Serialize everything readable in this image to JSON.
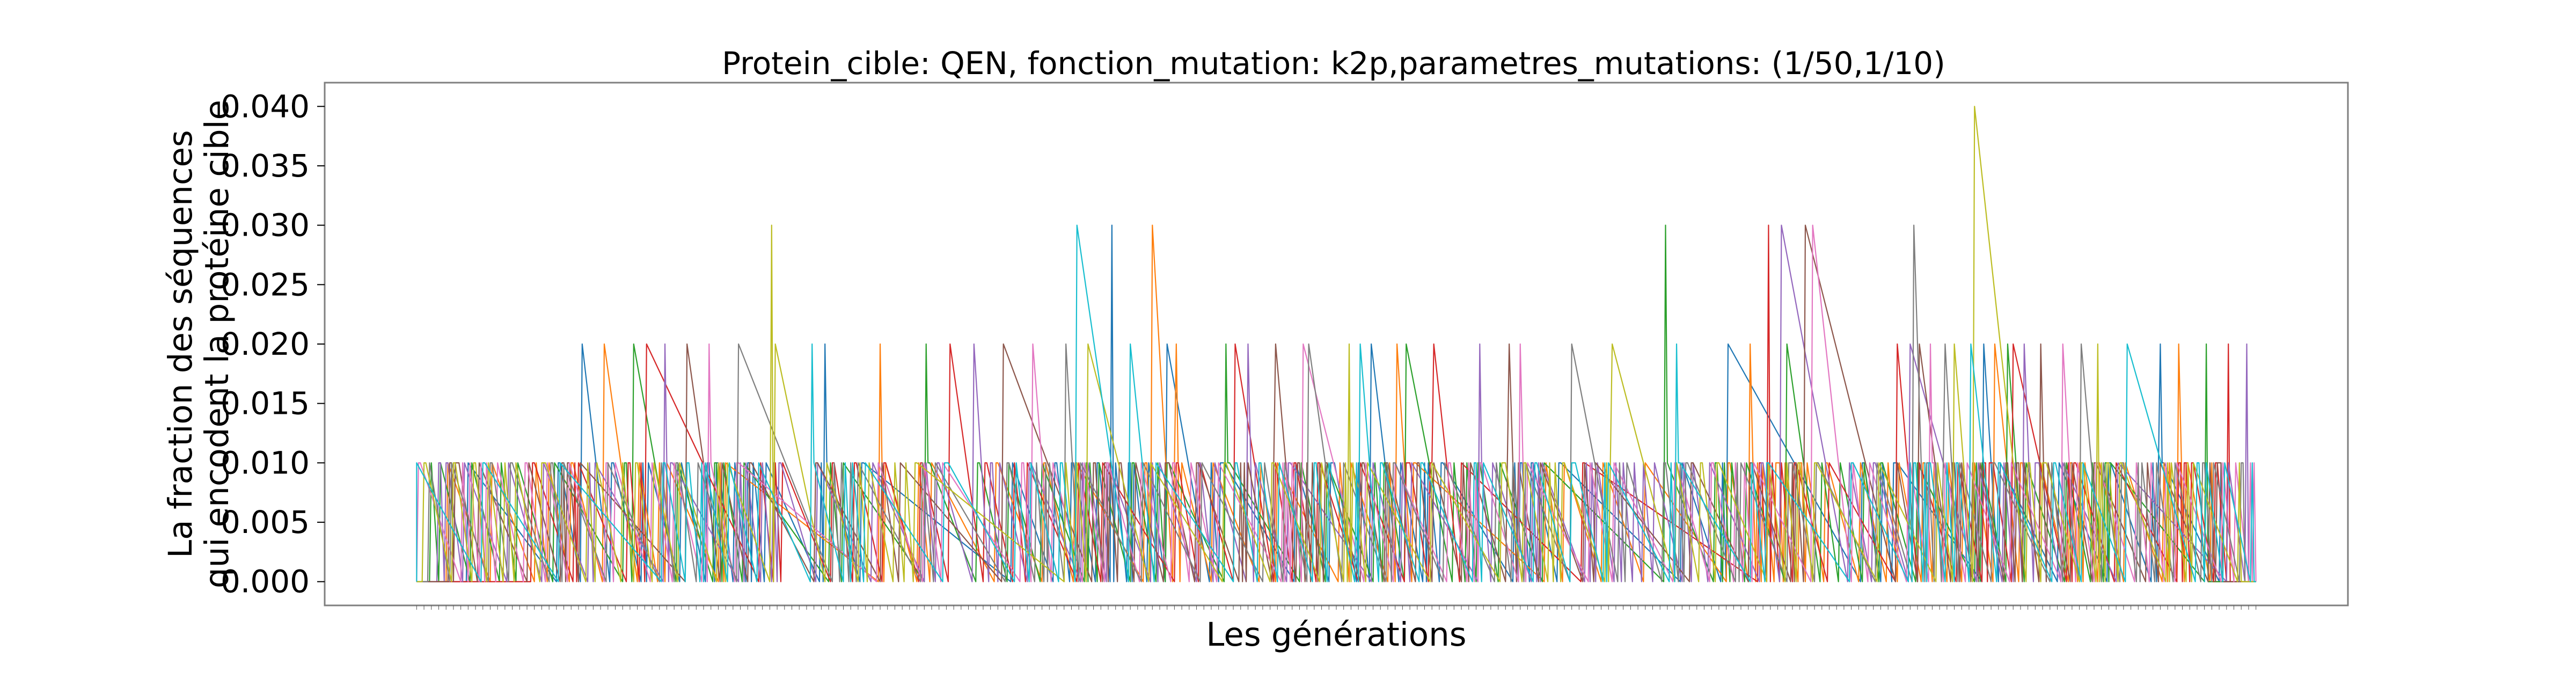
{
  "chart_data": {
    "type": "line",
    "title": "Protein_cible: QEN, fonction_mutation: k2p,parametres_mutations: (1/50,1/10)",
    "xlabel": "Les générations",
    "ylabel_line1": "La fraction des séquences",
    "ylabel_line2": "qui encodent la protéine cible",
    "ylim": [
      -0.002,
      0.042
    ],
    "xlim": [
      -50,
      1050
    ],
    "x_range": [
      0,
      1000
    ],
    "yticks": [
      0.0,
      0.005,
      0.01,
      0.015,
      0.02,
      0.025,
      0.03,
      0.035,
      0.04
    ],
    "ytick_labels": [
      "0.000",
      "0.005",
      "0.010",
      "0.015",
      "0.020",
      "0.025",
      "0.030",
      "0.035",
      "0.040"
    ],
    "grid": false,
    "legend": "none",
    "series_colors": [
      "#1f77b4",
      "#ff7f0e",
      "#2ca02c",
      "#d62728",
      "#9467bd",
      "#8c564b",
      "#e377c2",
      "#7f7f7f",
      "#bcbd22",
      "#17becf"
    ],
    "peaks_at_0_02": [
      90,
      102,
      118,
      125,
      135,
      147,
      159,
      175,
      195,
      215,
      222,
      252,
      277,
      290,
      303,
      319,
      335,
      353,
      365,
      388,
      408,
      413,
      440,
      445,
      452,
      467,
      482,
      485,
      507,
      513,
      519,
      533,
      538,
      553,
      578,
      594,
      600,
      628,
      650,
      685,
      713,
      725,
      745,
      805,
      812,
      817,
      823,
      831,
      836,
      845,
      852,
      858,
      865,
      868,
      874,
      883,
      895,
      905,
      914,
      930,
      948,
      958,
      973,
      985,
      995,
      1002,
      1005,
      1010
    ],
    "peaks_at_0_03": [
      193,
      359,
      378,
      400,
      679,
      735,
      742,
      755,
      759,
      814
    ],
    "peaks_at_0_04": [
      847
    ]
  }
}
